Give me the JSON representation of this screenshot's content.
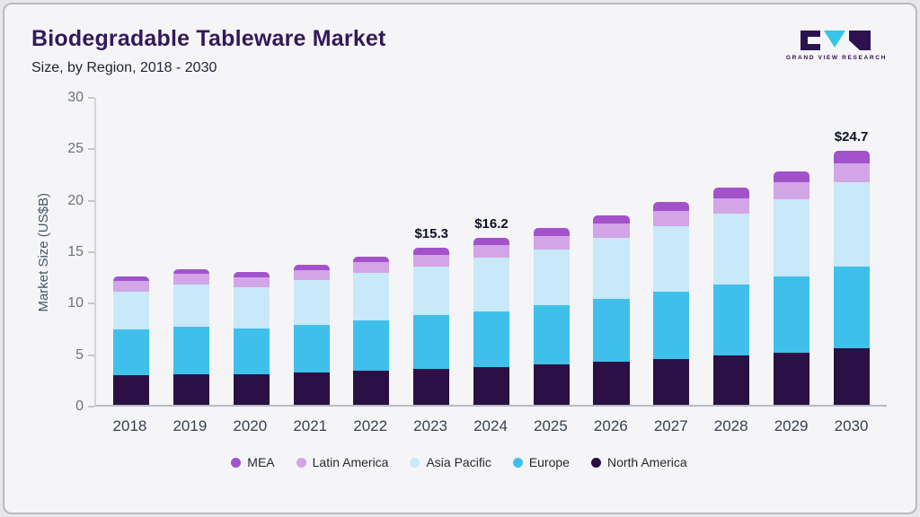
{
  "header": {
    "title": "Biodegradable Tableware Market",
    "subtitle": "Size, by Region, 2018 - 2030"
  },
  "logo": {
    "text": "GRAND VIEW RESEARCH"
  },
  "chart_data": {
    "type": "bar",
    "stacked": true,
    "title": "Biodegradable Tableware Market Size, by Region, 2018 - 2030",
    "xlabel": "",
    "ylabel": "Market Size (US$B)",
    "ylim": [
      0,
      30
    ],
    "yticks": [
      0,
      5,
      10,
      15,
      20,
      25,
      30
    ],
    "grid": false,
    "legend_position": "bottom",
    "categories": [
      "2018",
      "2019",
      "2020",
      "2021",
      "2022",
      "2023",
      "2024",
      "2025",
      "2026",
      "2027",
      "2028",
      "2029",
      "2030"
    ],
    "series": [
      {
        "name": "North America",
        "color": "#2a1045",
        "values": [
          2.9,
          3.0,
          2.95,
          3.1,
          3.3,
          3.5,
          3.7,
          3.9,
          4.2,
          4.45,
          4.8,
          5.1,
          5.5
        ]
      },
      {
        "name": "Europe",
        "color": "#3fc0ea",
        "values": [
          4.4,
          4.6,
          4.45,
          4.7,
          4.9,
          5.2,
          5.4,
          5.8,
          6.1,
          6.55,
          6.9,
          7.4,
          7.9
        ]
      },
      {
        "name": "Asia Pacific",
        "color": "#c9e8f9",
        "values": [
          3.7,
          4.1,
          4.0,
          4.3,
          4.6,
          4.7,
          5.2,
          5.4,
          5.9,
          6.4,
          6.9,
          7.5,
          8.2
        ]
      },
      {
        "name": "Latin America",
        "color": "#d2a5e6",
        "values": [
          1.0,
          1.0,
          1.0,
          1.0,
          1.05,
          1.2,
          1.2,
          1.3,
          1.4,
          1.4,
          1.5,
          1.6,
          1.9
        ]
      },
      {
        "name": "MEA",
        "color": "#a352cc",
        "values": [
          0.5,
          0.5,
          0.5,
          0.5,
          0.55,
          0.7,
          0.7,
          0.8,
          0.8,
          0.9,
          1.0,
          1.1,
          1.2
        ]
      }
    ],
    "totals": [
      12.5,
      13.2,
      12.9,
      13.6,
      14.4,
      15.3,
      16.2,
      17.2,
      18.4,
      19.7,
      21.1,
      22.7,
      24.7
    ],
    "annotations": {
      "2023": "$15.3",
      "2024": "$16.2",
      "2030": "$24.7"
    },
    "legend": [
      "MEA",
      "Latin America",
      "Asia Pacific",
      "Europe",
      "North America"
    ]
  }
}
